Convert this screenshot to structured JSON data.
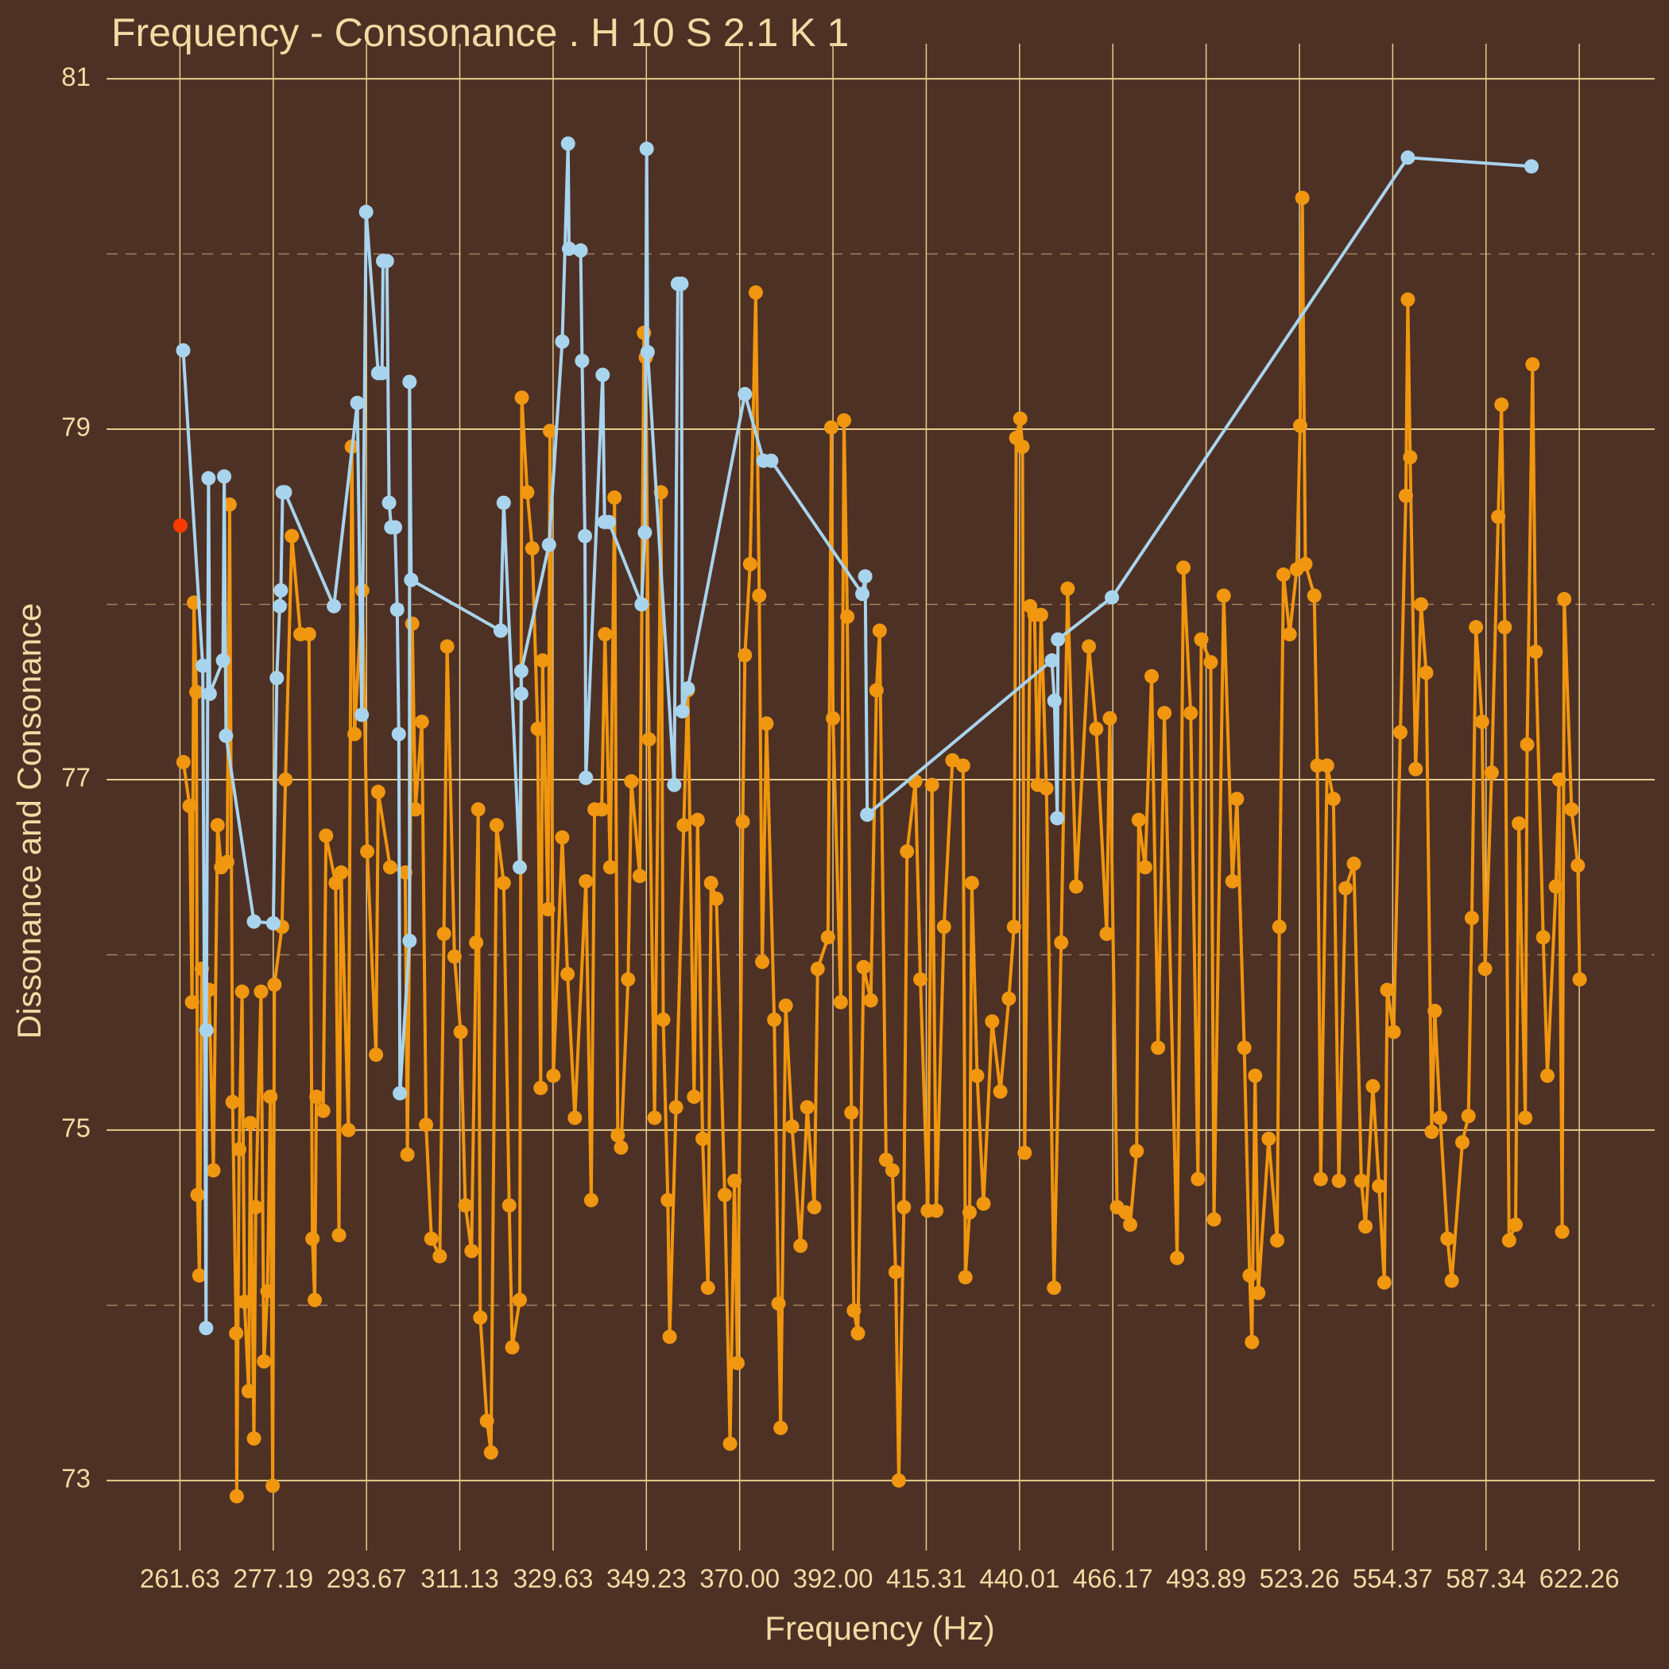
{
  "chart_data": {
    "type": "line",
    "title": "Frequency - Consonance . H 10 S 2.1 K 1",
    "x_label": "Frequency (Hz)",
    "y_label": "Dissonance and Consonance",
    "xlog": true,
    "grid": true,
    "xlim": [
      250,
      652
    ],
    "ylim": [
      72.6,
      81.2
    ],
    "xticks": [
      261.63,
      277.19,
      293.67,
      311.13,
      329.63,
      349.23,
      {
        "value": 370,
        "label": "370.00"
      },
      {
        "value": 392,
        "label": "392.00"
      },
      415.31,
      440.01,
      466.17,
      493.89,
      523.26,
      554.37,
      587.34,
      622.26
    ],
    "yticks": [
      73,
      75,
      77,
      79,
      81
    ],
    "yminor": [
      74,
      76,
      78,
      80
    ],
    "series": [
      {
        "color": "#f0960f",
        "x": [
          262.2,
          263.2,
          263.6,
          263.9,
          264.3,
          264.5,
          264.8,
          265.2,
          266.4,
          267.1,
          267.8,
          268.4,
          269.4,
          269.8,
          270.3,
          270.9,
          271.0,
          271.4,
          271.9,
          272.3,
          273.0,
          273.3,
          273.9,
          274.2,
          275.1,
          275.6,
          276.2,
          276.7,
          277.1,
          277.4,
          278.7,
          279.3,
          280.4,
          281.9,
          283.4,
          284.0,
          284.4,
          284.7,
          285.9,
          286.4,
          288.1,
          288.7,
          289.1,
          290.4,
          291.0,
          291.5,
          292.9,
          293.8,
          295.4,
          295.8,
          298.0,
          300.8,
          301.2,
          302.1,
          302.7,
          303.9,
          304.7,
          305.7,
          307.3,
          308.1,
          308.7,
          310.1,
          311.3,
          312.2,
          313.4,
          314.3,
          314.7,
          315.1,
          316.4,
          317.2,
          318.3,
          319.7,
          320.8,
          321.4,
          322.9,
          323.3,
          324.4,
          325.4,
          326.5,
          327.1,
          327.5,
          328.6,
          329.0,
          329.7,
          331.5,
          332.6,
          334.1,
          336.4,
          337.5,
          338.2,
          339.7,
          340.4,
          341.5,
          342.4,
          343.1,
          343.8,
          345.3,
          346.0,
          347.8,
          348.7,
          349.1,
          349.8,
          351.0,
          352.4,
          352.9,
          353.9,
          354.3,
          355.7,
          357.4,
          358.3,
          359.7,
          360.5,
          361.6,
          362.8,
          363.5,
          364.7,
          366.6,
          367.8,
          368.8,
          369.5,
          370.7,
          371.2,
          372.4,
          373.7,
          374.5,
          375.2,
          376.2,
          378.0,
          379.0,
          379.5,
          380.7,
          382.2,
          384.2,
          385.8,
          387.5,
          388.3,
          390.8,
          391.6,
          392.0,
          393.9,
          394.7,
          395.5,
          396.5,
          397.1,
          398.1,
          399.5,
          401.3,
          402.7,
          403.5,
          405.1,
          406.7,
          407.5,
          408.3,
          409.6,
          410.4,
          412.5,
          413.8,
          415.7,
          416.8,
          417.9,
          419.9,
          422.1,
          424.9,
          425.5,
          426.6,
          427.2,
          428.6,
          430.3,
          432.6,
          434.8,
          437.1,
          438.5,
          439.1,
          440.2,
          440.8,
          441.4,
          442.9,
          444.1,
          445.0,
          445.9,
          447.4,
          449.5,
          451.5,
          453.3,
          455.7,
          459.3,
          461.4,
          464.4,
          465.3,
          467.4,
          469.9,
          471.2,
          473.1,
          473.7,
          475.6,
          477.5,
          479.4,
          481.3,
          485.1,
          487.0,
          489.2,
          491.4,
          492.4,
          495.3,
          496.3,
          499.3,
          502.0,
          503.4,
          505.7,
          507.4,
          508.1,
          509.1,
          510.1,
          513.4,
          516.1,
          516.8,
          518.1,
          520.1,
          522.4,
          523.5,
          524.2,
          525.2,
          528.1,
          529.1,
          530.2,
          532.3,
          534.4,
          536.2,
          538.4,
          541.2,
          543.7,
          545.1,
          547.6,
          549.7,
          551.5,
          552.5,
          554.7,
          557.0,
          558.9,
          559.6,
          560.4,
          562.3,
          564.2,
          566.0,
          567.9,
          569.0,
          570.9,
          573.5,
          575.0,
          578.8,
          581.0,
          582.2,
          583.7,
          585.9,
          587.0,
          589.4,
          591.8,
          593.0,
          594.2,
          595.8,
          598.2,
          599.4,
          601.8,
          602.5,
          604.5,
          605.7,
          608.5,
          610.1,
          613.3,
          614.5,
          615.7,
          616.5,
          619.3,
          621.7,
          622.4
        ],
        "values": [
          77.1,
          76.85,
          75.73,
          78.01,
          77.5,
          74.63,
          74.17,
          75.92,
          75.8,
          74.77,
          76.74,
          76.5,
          76.53,
          78.57,
          75.16,
          73.84,
          72.91,
          74.89,
          75.79,
          74.02,
          73.51,
          75.04,
          73.24,
          74.56,
          75.79,
          73.68,
          74.08,
          75.19,
          72.97,
          75.83,
          76.16,
          77.0,
          78.39,
          77.83,
          77.83,
          74.38,
          74.03,
          75.19,
          75.11,
          76.68,
          76.41,
          74.4,
          76.47,
          75.0,
          78.9,
          77.26,
          78.08,
          76.59,
          75.43,
          76.93,
          76.5,
          76.47,
          74.86,
          77.89,
          76.83,
          77.33,
          75.03,
          74.38,
          74.28,
          76.12,
          77.76,
          75.99,
          75.56,
          74.57,
          74.31,
          76.07,
          76.83,
          73.93,
          73.34,
          73.16,
          76.74,
          76.41,
          74.57,
          73.76,
          74.03,
          79.18,
          78.64,
          78.32,
          77.29,
          75.24,
          77.68,
          76.26,
          78.99,
          75.31,
          76.67,
          75.89,
          75.07,
          76.42,
          74.6,
          76.83,
          76.83,
          77.83,
          76.5,
          78.61,
          74.97,
          74.9,
          75.86,
          76.99,
          76.45,
          79.55,
          79.41,
          77.23,
          75.07,
          78.64,
          75.63,
          74.6,
          73.82,
          75.13,
          76.74,
          77.51,
          75.19,
          76.77,
          74.95,
          74.1,
          76.41,
          76.32,
          74.63,
          73.21,
          74.71,
          73.67,
          76.76,
          77.71,
          78.23,
          79.78,
          78.05,
          75.96,
          77.32,
          75.63,
          74.01,
          73.3,
          75.71,
          75.02,
          74.34,
          75.13,
          74.56,
          75.92,
          76.1,
          79.01,
          77.35,
          75.73,
          79.05,
          77.93,
          75.1,
          73.97,
          73.84,
          75.93,
          75.74,
          77.51,
          77.85,
          74.83,
          74.77,
          74.19,
          73.0,
          74.56,
          76.59,
          76.99,
          75.86,
          74.54,
          76.97,
          74.54,
          76.16,
          77.11,
          77.08,
          74.16,
          74.53,
          76.41,
          75.31,
          74.58,
          75.62,
          75.22,
          75.75,
          76.16,
          78.95,
          79.06,
          78.9,
          74.87,
          77.99,
          77.94,
          76.97,
          77.94,
          76.95,
          74.1,
          76.07,
          78.09,
          76.39,
          77.76,
          77.29,
          76.12,
          77.35,
          74.56,
          74.53,
          74.46,
          74.88,
          76.77,
          76.5,
          77.59,
          75.47,
          77.38,
          74.27,
          78.21,
          77.38,
          74.72,
          77.8,
          77.67,
          74.49,
          78.05,
          76.42,
          76.89,
          75.47,
          74.17,
          73.79,
          75.31,
          74.07,
          74.95,
          74.37,
          76.16,
          78.17,
          77.83,
          78.2,
          79.02,
          80.32,
          78.23,
          78.05,
          77.08,
          74.72,
          77.08,
          76.89,
          74.71,
          76.38,
          76.52,
          74.71,
          74.45,
          75.25,
          74.68,
          74.13,
          75.8,
          75.56,
          77.27,
          78.62,
          79.74,
          78.84,
          77.06,
          78.0,
          77.61,
          74.99,
          75.68,
          75.07,
          74.38,
          74.14,
          74.93,
          75.08,
          76.21,
          77.87,
          77.33,
          75.92,
          77.04,
          78.5,
          79.14,
          77.87,
          74.37,
          74.46,
          76.75,
          75.07,
          77.2,
          79.37,
          77.73,
          76.1,
          75.31,
          76.39,
          77.0,
          74.42,
          78.03,
          76.83,
          76.51,
          75.86
        ]
      },
      {
        "color": "#a8d4ee",
        "x": [
          262.16,
          265.35,
          265.9,
          265.95,
          266.3,
          266.5,
          268.7,
          268.9,
          269.2,
          273.9,
          277.2,
          277.8,
          278.3,
          278.5,
          278.8,
          279.2,
          287.8,
          292.0,
          292.8,
          293.6,
          295.8,
          296.5,
          296.7,
          297.4,
          297.8,
          298.2,
          298.9,
          299.3,
          299.6,
          299.8,
          301.6,
          301.6,
          301.9,
          319.1,
          319.7,
          322.9,
          323.2,
          323.2,
          328.8,
          331.5,
          332.7,
          332.9,
          335.3,
          335.6,
          336.2,
          336.4,
          339.9,
          340.3,
          341.2,
          348.2,
          348.9,
          349.3,
          349.5,
          355.3,
          356.1,
          356.9,
          357.1,
          358.3,
          371.2,
          375.5,
          377.3,
          399.2,
          399.9,
          400.4,
          448.9,
          449.6,
          450.4,
          450.6,
          465.9,
          559.6,
          604.1
        ],
        "values": [
          79.45,
          77.65,
          73.87,
          75.57,
          78.72,
          77.49,
          77.68,
          78.73,
          77.25,
          76.19,
          76.18,
          77.58,
          77.99,
          78.08,
          78.64,
          78.64,
          77.99,
          79.15,
          77.37,
          80.24,
          79.32,
          79.32,
          79.96,
          79.96,
          78.58,
          78.44,
          78.44,
          77.97,
          77.26,
          75.21,
          76.08,
          79.27,
          78.14,
          77.85,
          78.58,
          76.5,
          77.49,
          77.62,
          78.34,
          79.5,
          80.63,
          80.03,
          80.02,
          79.39,
          78.39,
          77.01,
          79.31,
          78.47,
          78.47,
          78.0,
          78.41,
          80.6,
          79.44,
          76.97,
          79.83,
          79.83,
          77.39,
          77.52,
          79.2,
          78.82,
          78.82,
          78.06,
          78.16,
          76.8,
          77.68,
          77.45,
          76.78,
          77.8,
          78.04,
          80.55,
          80.5
        ]
      },
      {
        "color": "#ff3a00",
        "x": [
          261.7
        ],
        "values": [
          78.45
        ]
      }
    ]
  }
}
